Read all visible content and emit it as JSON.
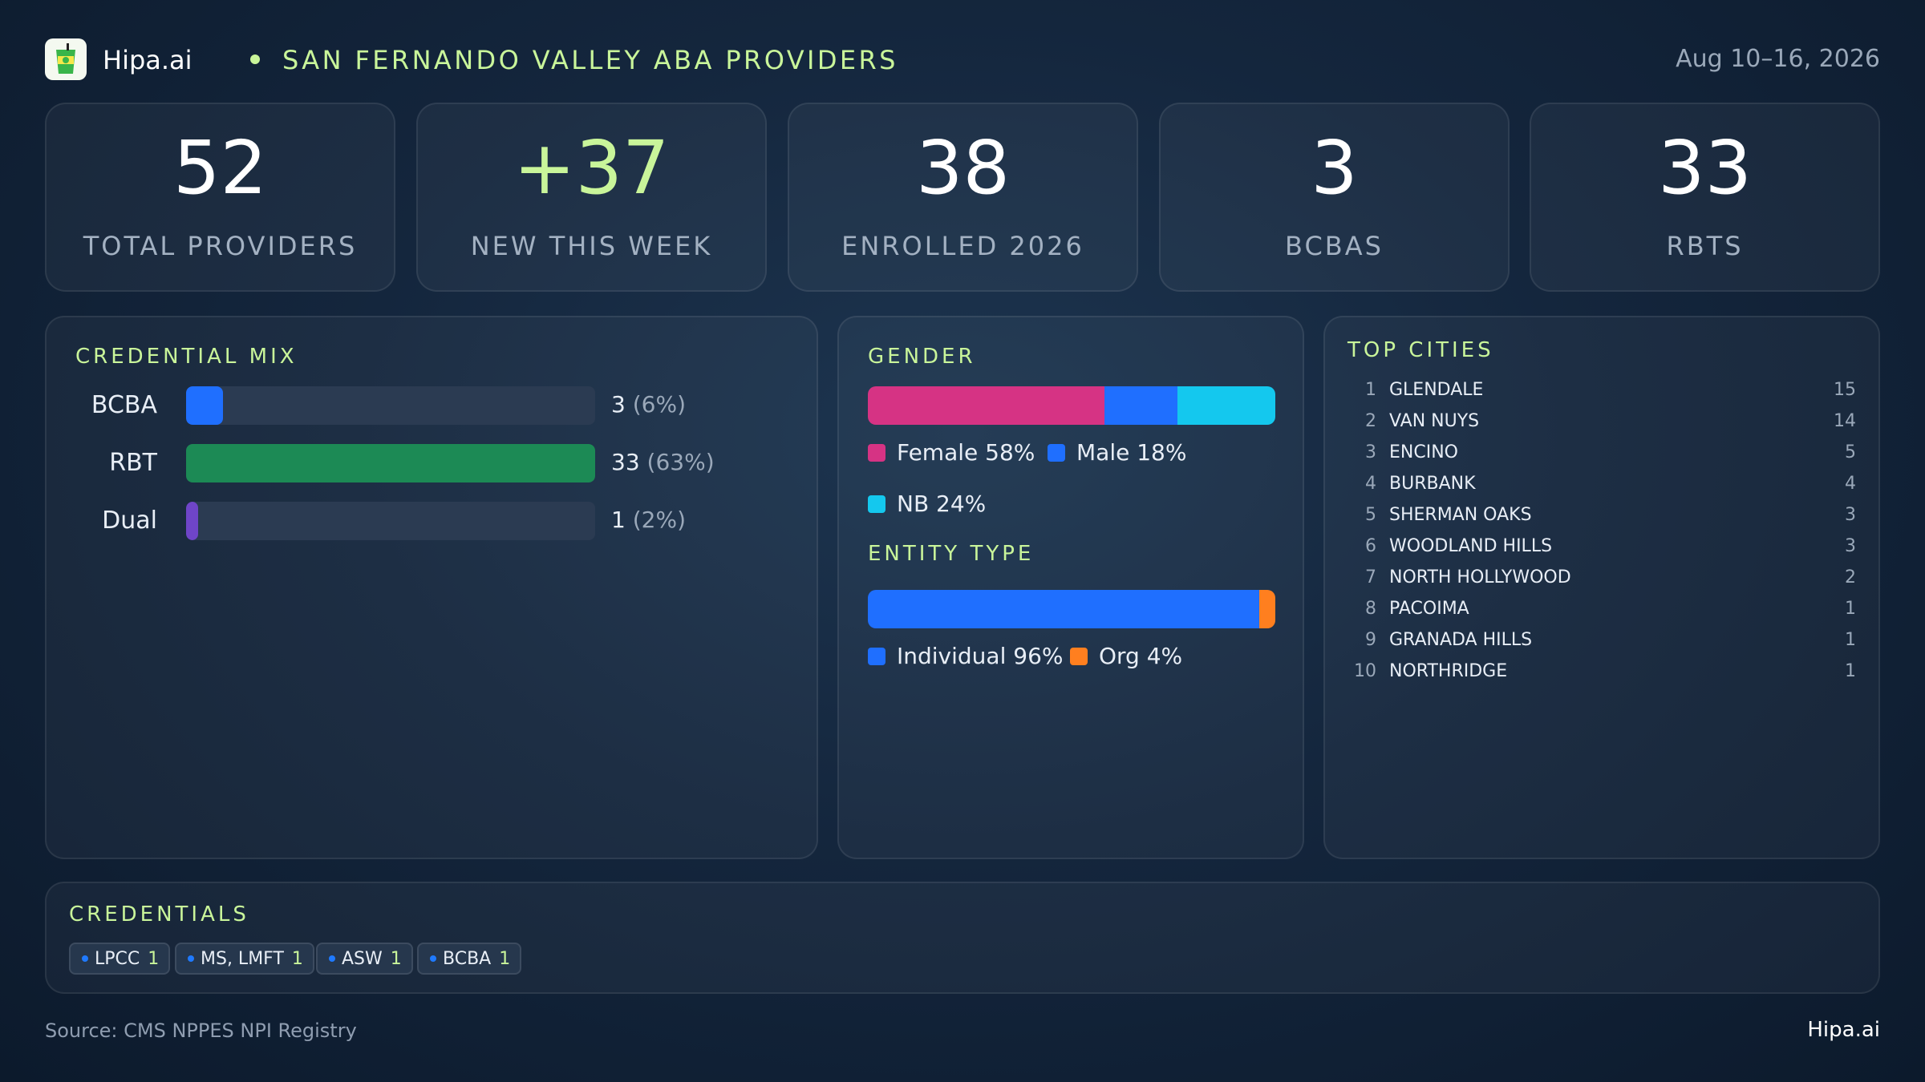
{
  "header": {
    "brand": "Hipa.ai",
    "title": "SAN FERNANDO VALLEY ABA PROVIDERS",
    "date": "Aug 10–16, 2026"
  },
  "kpis": [
    {
      "value": "52",
      "label": "TOTAL PROVIDERS"
    },
    {
      "value": "+37",
      "label": "NEW THIS WEEK"
    },
    {
      "value": "38",
      "label": "ENROLLED 2026"
    },
    {
      "value": "3",
      "label": "BCBAS"
    },
    {
      "value": "33",
      "label": "RBTS"
    }
  ],
  "credential_mix": {
    "title": "CREDENTIAL MIX",
    "rows": [
      {
        "label": "BCBA",
        "count": "3",
        "pct": "(6%)"
      },
      {
        "label": "RBT",
        "count": "33",
        "pct": "(63%)"
      },
      {
        "label": "Dual",
        "count": "1",
        "pct": "(2%)"
      }
    ]
  },
  "gender": {
    "title": "GENDER",
    "legend": [
      {
        "label": "Female 58%"
      },
      {
        "label": "Male 18%"
      },
      {
        "label": "NB 24%"
      }
    ]
  },
  "entity": {
    "title": "ENTITY TYPE",
    "legend": [
      {
        "label": "Individual 96%"
      },
      {
        "label": "Org 4%"
      }
    ]
  },
  "top_cities": {
    "title": "TOP CITIES",
    "rows": [
      {
        "rank": "1",
        "name": "GLENDALE",
        "count": "15"
      },
      {
        "rank": "2",
        "name": "VAN NUYS",
        "count": "14"
      },
      {
        "rank": "3",
        "name": "ENCINO",
        "count": "5"
      },
      {
        "rank": "4",
        "name": "BURBANK",
        "count": "4"
      },
      {
        "rank": "5",
        "name": "SHERMAN OAKS",
        "count": "3"
      },
      {
        "rank": "6",
        "name": "WOODLAND HILLS",
        "count": "3"
      },
      {
        "rank": "7",
        "name": "NORTH HOLLYWOOD",
        "count": "2"
      },
      {
        "rank": "8",
        "name": "PACOIMA",
        "count": "1"
      },
      {
        "rank": "9",
        "name": "GRANADA HILLS",
        "count": "1"
      },
      {
        "rank": "10",
        "name": "NORTHRIDGE",
        "count": "1"
      }
    ]
  },
  "credentials": {
    "title": "CREDENTIALS",
    "chips": [
      {
        "label": "LPCC",
        "count": "1"
      },
      {
        "label": "MS, LMFT",
        "count": "1"
      },
      {
        "label": "ASW",
        "count": "1"
      },
      {
        "label": "BCBA",
        "count": "1"
      }
    ]
  },
  "footer": {
    "source": "Source: CMS NPPES NPI Registry",
    "brand": "Hipa.ai"
  },
  "colors": {
    "accent": "#c9f59a",
    "bcba": "#1f6fff",
    "rbt": "#1c8a55",
    "dual": "#6f45c8",
    "female": "#d63384",
    "male": "#1f6fff",
    "nb": "#14c8ee",
    "individual": "#1f6fff",
    "org": "#ff7f1f"
  },
  "chart_data": [
    {
      "type": "bar",
      "title": "CREDENTIAL MIX",
      "categories": [
        "BCBA",
        "RBT",
        "Dual"
      ],
      "values": [
        3,
        33,
        1
      ],
      "percents": [
        6,
        63,
        2
      ],
      "orientation": "horizontal",
      "xlim": [
        0,
        33
      ]
    },
    {
      "type": "bar",
      "title": "GENDER",
      "stacked": true,
      "categories": [
        "Female",
        "Male",
        "NB"
      ],
      "values": [
        58,
        18,
        24
      ]
    },
    {
      "type": "bar",
      "title": "ENTITY TYPE",
      "stacked": true,
      "categories": [
        "Individual",
        "Org"
      ],
      "values": [
        96,
        4
      ]
    }
  ]
}
